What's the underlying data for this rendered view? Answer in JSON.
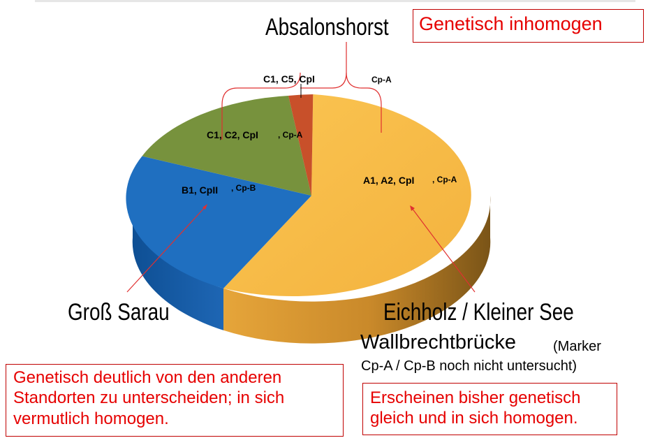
{
  "sites": {
    "absalonshorst": "Absalonshorst",
    "gross_sarau": "Groß Sarau",
    "eichholz": "Eichholz / Kleiner See",
    "wallbrecht": "Wallbrechtbrücke",
    "wallbrecht_note_1": "(Marker",
    "wallbrecht_note_2": "Cp-A / Cp-B noch nicht untersucht)"
  },
  "boxes": {
    "inhomogen": "Genetisch inhomogen",
    "gross_sarau_line1": "Genetisch deutlich von den anderen",
    "gross_sarau_line2": "Standorten zu unterscheiden; in sich",
    "gross_sarau_line3": "vermutlich homogen.",
    "eichholz_line1": "Erscheinen bisher genetisch",
    "eichholz_line2": "gleich und in sich homogen."
  },
  "segment_labels": {
    "top_left": "C1, C5, CpI",
    "top_right": "Cp-A",
    "green_main": "C1, C2, CpI",
    "green_marker": ", Cp-A",
    "blue_main": "B1, CpII",
    "blue_marker": ", Cp-B",
    "yellow_main": "A1, A2, CpI",
    "yellow_marker": ", Cp-A"
  },
  "chart_data": {
    "type": "pie",
    "slices": [
      {
        "label": "A1, A2, CpI, Cp-A",
        "value": 58,
        "color": "#f7b944"
      },
      {
        "label": "B1, CpII, Cp-B",
        "value": 20,
        "color": "#1f6fc0"
      },
      {
        "label": "C1, C2, CpI, Cp-A",
        "value": 19,
        "color": "#76923c"
      },
      {
        "label": "C1, C5, CpI",
        "value": 3,
        "color": "#c8502a"
      }
    ],
    "style": "3d"
  }
}
